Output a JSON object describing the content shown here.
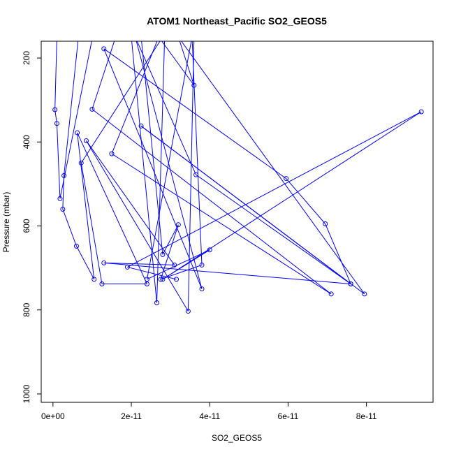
{
  "chart_data": {
    "type": "line",
    "title": "ATOM1 Northeast_Pacific SO2_GEOS5",
    "xlabel": "SO2_GEOS5",
    "ylabel": "Pressure (mbar)",
    "xlim": [
      -3e-12,
      9.7e-11
    ],
    "ylim": [
      1020,
      160
    ],
    "y_reversed": true,
    "grid": false,
    "legend": "none",
    "x_ticks": [
      0,
      2e-11,
      4e-11,
      6e-11,
      8e-11
    ],
    "x_tick_labels": [
      "0e+00",
      "2e-11",
      "4e-11",
      "6e-11",
      "8e-11"
    ],
    "y_ticks": [
      200,
      400,
      600,
      800,
      1000
    ],
    "y_tick_labels": [
      "200",
      "400",
      "600",
      "800",
      "1000"
    ],
    "series": [
      {
        "color": "#0000ff",
        "marker": "open-circle",
        "points": [
          [
            1e-12,
            150,
            false
          ],
          [
            5e-13,
            323,
            true
          ],
          [
            1e-12,
            356,
            true
          ],
          [
            1.8e-12,
            535,
            true
          ],
          [
            1.2e-11,
            62,
            false
          ],
          [
            6.5e-12,
            150,
            false
          ],
          [
            2.8e-12,
            480,
            true
          ],
          [
            2.5e-12,
            560,
            true
          ],
          [
            6e-12,
            648,
            true
          ],
          [
            1.05e-11,
            727,
            true
          ],
          [
            6.2e-12,
            378,
            true
          ],
          [
            2.4e-11,
            738,
            true
          ],
          [
            1.25e-11,
            738,
            true
          ],
          [
            7.2e-12,
            450,
            true
          ],
          [
            2.8e-11,
            150,
            false
          ],
          [
            1.6e-11,
            150,
            false
          ],
          [
            1e-11,
            322,
            true
          ],
          [
            7.1e-11,
            762,
            true
          ],
          [
            1.5e-11,
            428,
            true
          ],
          [
            2.7e-11,
            150,
            false
          ],
          [
            3.6e-11,
            265,
            true
          ],
          [
            3.2e-11,
            150,
            false
          ],
          [
            7.95e-11,
            762,
            true
          ],
          [
            2.25e-11,
            362,
            true
          ],
          [
            7.6e-11,
            738,
            true
          ],
          [
            6.95e-11,
            595,
            true
          ],
          [
            5.95e-11,
            487,
            true
          ],
          [
            1.3e-11,
            178,
            true
          ],
          [
            3.8e-11,
            750,
            true
          ],
          [
            2.1e-11,
            150,
            false
          ],
          [
            3.65e-11,
            478,
            true
          ],
          [
            7.6e-11,
            738,
            true
          ],
          [
            1.3e-11,
            688,
            true
          ],
          [
            3.1e-11,
            693,
            true
          ],
          [
            8.5e-12,
            397,
            true
          ],
          [
            3.45e-11,
            803,
            true
          ],
          [
            3.6e-11,
            150,
            false
          ],
          [
            2e-11,
            150,
            false
          ],
          [
            2.65e-11,
            783,
            true
          ],
          [
            2.85e-11,
            150,
            false
          ],
          [
            2.25e-11,
            150,
            false
          ],
          [
            2.8e-11,
            668,
            true
          ],
          [
            3.2e-11,
            597,
            true
          ],
          [
            2.75e-11,
            727,
            true
          ],
          [
            3.8e-11,
            693,
            true
          ],
          [
            3.55e-11,
            150,
            false
          ],
          [
            2.4e-11,
            727,
            true
          ],
          [
            4e-11,
            657,
            true
          ],
          [
            2.8e-11,
            727,
            true
          ],
          [
            9.4e-11,
            328,
            true
          ],
          [
            1.9e-11,
            698,
            true
          ],
          [
            3.15e-11,
            727,
            true
          ]
        ]
      }
    ]
  }
}
